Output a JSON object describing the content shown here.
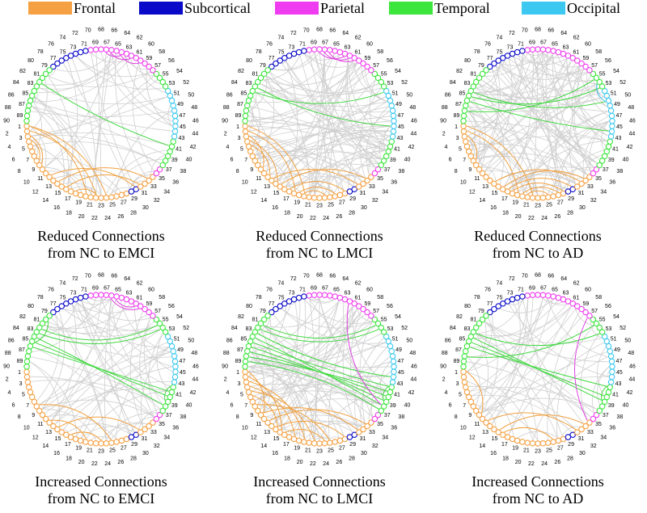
{
  "legend": [
    {
      "label": "Frontal",
      "color": "#f5a042"
    },
    {
      "label": "Subcortical",
      "color": "#0a0ac8"
    },
    {
      "label": "Parietal",
      "color": "#f03cf0"
    },
    {
      "label": "Temporal",
      "color": "#3ce63c"
    },
    {
      "label": "Occipital",
      "color": "#3cc8f0"
    }
  ],
  "node_count": 90,
  "lobes": [
    {
      "lobe": 0,
      "ranges": [
        [
          1,
          28
        ],
        [
          31,
          34
        ]
      ]
    },
    {
      "lobe": 1,
      "ranges": [
        [
          29,
          30
        ],
        [
          71,
          78
        ]
      ]
    },
    {
      "lobe": 2,
      "ranges": [
        [
          35,
          36
        ],
        [
          57,
          70
        ]
      ]
    },
    {
      "lobe": 3,
      "ranges": [
        [
          37,
          42
        ],
        [
          53,
          56
        ],
        [
          79,
          90
        ]
      ]
    },
    {
      "lobe": 4,
      "ranges": [
        [
          43,
          52
        ]
      ]
    }
  ],
  "panels": [
    {
      "caption1": "Reduced Connections",
      "caption2": "from NC to EMCI",
      "gray_edges": 70,
      "seed": 3,
      "edges": [
        [
          82,
          41
        ],
        [
          1,
          20
        ],
        [
          2,
          22
        ],
        [
          3,
          9
        ],
        [
          4,
          8
        ],
        [
          1,
          24
        ],
        [
          12,
          30
        ],
        [
          14,
          33
        ],
        [
          16,
          31
        ],
        [
          18,
          22
        ],
        [
          60,
          64
        ],
        [
          62,
          66
        ],
        [
          64,
          67
        ]
      ]
    },
    {
      "caption1": "Reduced Connections",
      "caption2": "from NC to LMCI",
      "gray_edges": 110,
      "seed": 7,
      "edges": [
        [
          84,
          52
        ],
        [
          83,
          45
        ],
        [
          1,
          20
        ],
        [
          2,
          18
        ],
        [
          3,
          10
        ],
        [
          4,
          14
        ],
        [
          5,
          12
        ],
        [
          13,
          31
        ],
        [
          15,
          33
        ],
        [
          17,
          28
        ],
        [
          19,
          26
        ],
        [
          20,
          24
        ],
        [
          61,
          66
        ],
        [
          62,
          67
        ],
        [
          63,
          68
        ]
      ]
    },
    {
      "caption1": "Reduced Connections",
      "caption2": "from NC to AD",
      "gray_edges": 130,
      "seed": 11,
      "edges": [
        [
          86,
          44
        ],
        [
          84,
          50
        ],
        [
          85,
          53
        ],
        [
          88,
          55
        ],
        [
          1,
          22
        ],
        [
          2,
          19
        ],
        [
          3,
          8
        ],
        [
          14,
          32
        ],
        [
          16,
          33
        ],
        [
          17,
          30
        ],
        [
          18,
          28
        ],
        [
          20,
          27
        ],
        [
          21,
          25
        ],
        [
          50,
          54
        ]
      ]
    },
    {
      "caption1": "Increased Connections",
      "caption2": "from NC to EMCI",
      "gray_edges": 70,
      "seed": 5,
      "edges": [
        [
          86,
          41
        ],
        [
          85,
          40
        ],
        [
          84,
          38
        ],
        [
          83,
          54
        ],
        [
          82,
          55
        ],
        [
          80,
          85
        ],
        [
          39,
          42
        ],
        [
          8,
          25
        ],
        [
          12,
          20
        ],
        [
          14,
          31
        ],
        [
          17,
          23
        ],
        [
          60,
          66
        ],
        [
          61,
          65
        ]
      ]
    },
    {
      "caption1": "Increased Connections",
      "caption2": "from NC to LMCI",
      "gray_edges": 100,
      "seed": 9,
      "edges": [
        [
          88,
          41
        ],
        [
          87,
          40
        ],
        [
          86,
          39
        ],
        [
          85,
          42
        ],
        [
          84,
          38
        ],
        [
          83,
          44
        ],
        [
          82,
          54
        ],
        [
          81,
          55
        ],
        [
          89,
          37
        ],
        [
          1,
          10
        ],
        [
          2,
          15
        ],
        [
          3,
          20
        ],
        [
          4,
          18
        ],
        [
          5,
          22
        ],
        [
          6,
          14
        ],
        [
          8,
          25
        ],
        [
          10,
          31
        ],
        [
          12,
          33
        ],
        [
          14,
          28
        ],
        [
          16,
          24
        ],
        [
          62,
          38
        ],
        [
          39,
          42
        ]
      ]
    },
    {
      "caption1": "Increased Connections",
      "caption2": "from NC to AD",
      "gray_edges": 60,
      "seed": 13,
      "edges": [
        [
          86,
          42
        ],
        [
          85,
          40
        ],
        [
          84,
          39
        ],
        [
          83,
          53
        ],
        [
          55,
          88
        ],
        [
          1,
          10
        ],
        [
          12,
          31
        ],
        [
          15,
          33
        ],
        [
          16,
          26
        ],
        [
          57,
          34
        ],
        [
          39,
          42
        ]
      ]
    }
  ]
}
